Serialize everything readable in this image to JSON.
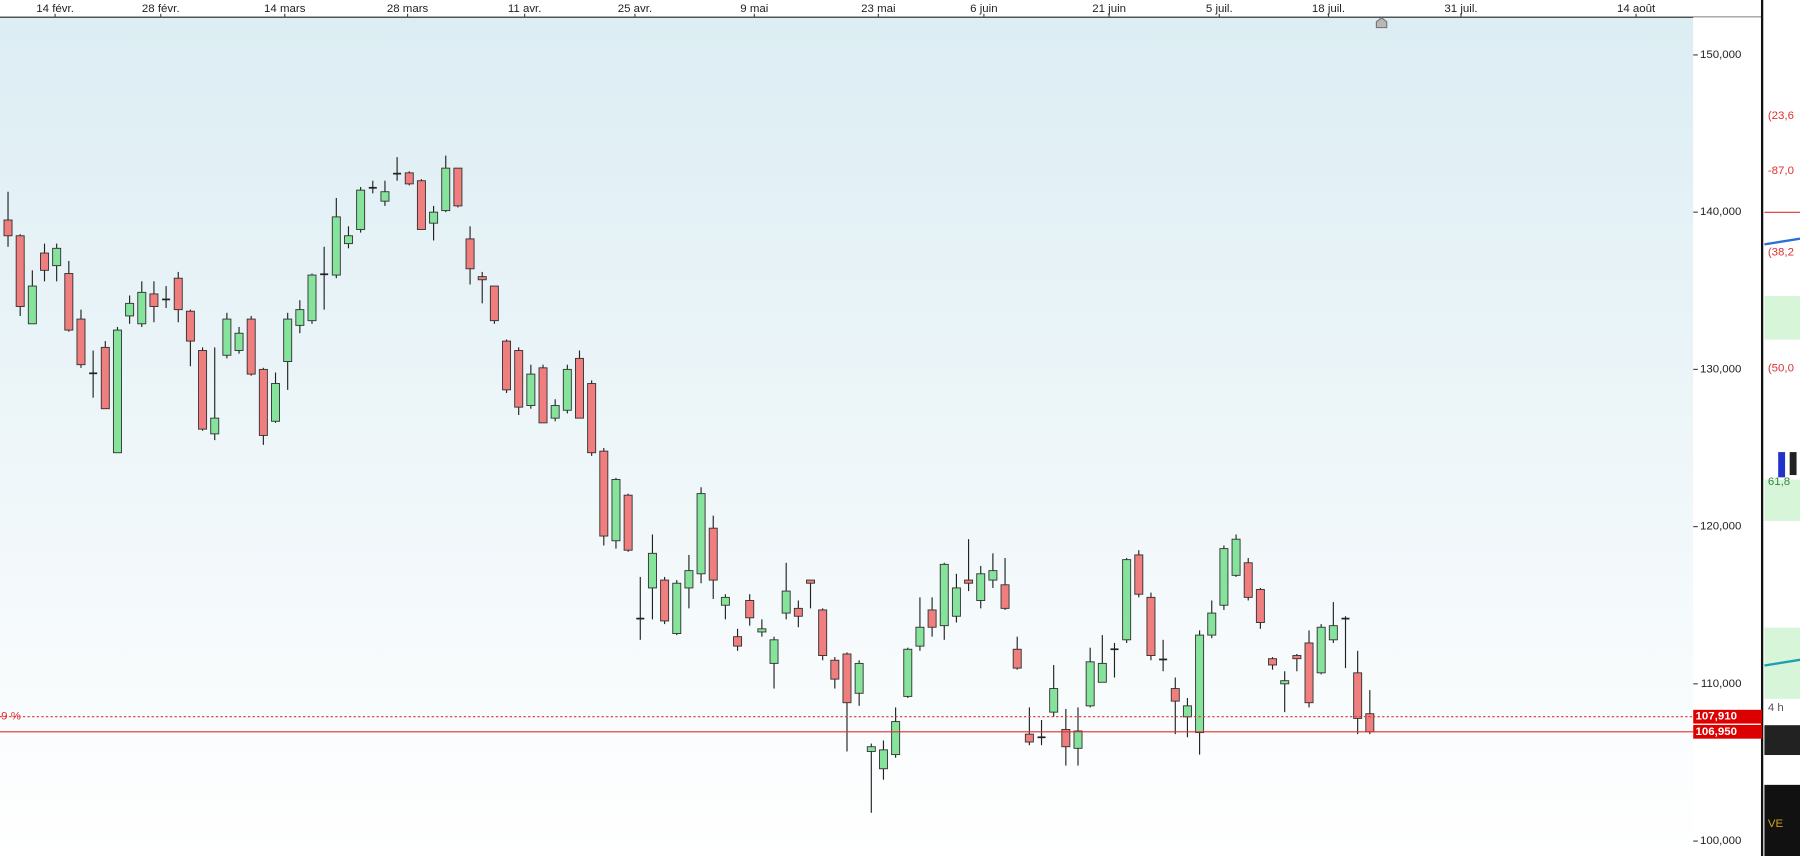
{
  "chart_data": {
    "type": "candlestick",
    "up_color": "#86e39c",
    "down_color": "#f07e7e",
    "open": [
      139500,
      138500,
      132900,
      137400,
      136600,
      136100,
      133200,
      129800,
      131400,
      124700,
      133400,
      132900,
      134800,
      134500,
      135800,
      133700,
      131200,
      125900,
      130900,
      131200,
      133200,
      130000,
      126700,
      130500,
      132800,
      133100,
      136000,
      136000,
      138000,
      138900,
      141500,
      140700,
      142400,
      142500,
      142000,
      139300,
      140100,
      142800,
      138300,
      135900,
      135300,
      131800,
      131200,
      127700,
      130100,
      126900,
      127400,
      130700,
      129100,
      124800,
      119100,
      122000,
      114200,
      116100,
      116600,
      113200,
      116100,
      117000,
      119900,
      115000,
      113000,
      115300,
      113300,
      111300,
      114500,
      114800,
      116600,
      114700,
      111500,
      111900,
      109400,
      105700,
      104600,
      105500,
      109200,
      112400,
      114700,
      113700,
      114300,
      116600,
      115300,
      116600,
      116300,
      112200,
      106800,
      106600,
      108200,
      107100,
      105900,
      108600,
      110100,
      112200,
      112800,
      118200,
      115500,
      111600,
      109700,
      107900,
      106900,
      113100,
      115000,
      116900,
      117700,
      116000,
      111600,
      110000,
      111800,
      112600,
      110700,
      112800,
      114200,
      110700,
      108100
    ],
    "high": [
      141300,
      138600,
      136300,
      138000,
      138000,
      136900,
      133800,
      131200,
      131800,
      132700,
      134700,
      135600,
      135600,
      135300,
      136200,
      133800,
      131400,
      131400,
      133600,
      132700,
      133400,
      130100,
      129800,
      133600,
      134400,
      136100,
      137800,
      140900,
      139100,
      141600,
      142000,
      142000,
      143500,
      142600,
      142100,
      140400,
      143600,
      142800,
      139100,
      136200,
      135300,
      131900,
      131400,
      130300,
      130300,
      128100,
      130300,
      131200,
      129300,
      125000,
      123100,
      122100,
      116800,
      119500,
      116800,
      116600,
      118200,
      122500,
      120700,
      115700,
      113500,
      115700,
      114100,
      113000,
      117700,
      115300,
      116600,
      114800,
      111700,
      112000,
      111500,
      106200,
      106400,
      108500,
      112300,
      115500,
      115500,
      117700,
      117000,
      119200,
      117500,
      118300,
      118000,
      113000,
      108500,
      107700,
      111200,
      108400,
      108500,
      112300,
      113100,
      112600,
      118000,
      118500,
      115800,
      112800,
      110400,
      109100,
      113400,
      115300,
      118800,
      119500,
      118000,
      116100,
      111700,
      110800,
      111900,
      113400,
      113800,
      115200,
      114300,
      112100,
      109600
    ],
    "low": [
      137800,
      133400,
      132900,
      135600,
      135600,
      132400,
      130100,
      128200,
      127500,
      124700,
      132900,
      132700,
      133000,
      133900,
      133000,
      130200,
      126100,
      125500,
      130700,
      131000,
      129600,
      125200,
      126600,
      128700,
      132300,
      132900,
      133800,
      135800,
      137700,
      138700,
      141200,
      140400,
      142000,
      141700,
      138900,
      138200,
      140000,
      140300,
      135400,
      134200,
      132900,
      128500,
      127100,
      127500,
      126600,
      126700,
      127200,
      126900,
      124500,
      118800,
      118600,
      118400,
      112800,
      114100,
      113800,
      113100,
      114800,
      116400,
      115400,
      114100,
      112100,
      113700,
      113000,
      109700,
      114100,
      113600,
      114800,
      111500,
      109700,
      105700,
      108600,
      101800,
      103900,
      105300,
      109100,
      112100,
      113000,
      112800,
      113900,
      115900,
      114800,
      116100,
      114700,
      110900,
      106100,
      106100,
      107900,
      104800,
      104800,
      108500,
      110100,
      110400,
      112600,
      115500,
      111500,
      110800,
      106800,
      106600,
      105500,
      112900,
      114700,
      116800,
      115300,
      113500,
      110900,
      108200,
      110800,
      108500,
      110600,
      112600,
      111000,
      106800,
      106800
    ],
    "close": [
      138500,
      134000,
      135300,
      136300,
      137700,
      132500,
      130300,
      129700,
      127500,
      132500,
      134200,
      134900,
      134000,
      134400,
      133800,
      131800,
      126200,
      126900,
      133200,
      132300,
      129700,
      125800,
      129100,
      133200,
      133800,
      136000,
      136100,
      139700,
      138500,
      141400,
      141600,
      141300,
      142500,
      141800,
      138900,
      140000,
      142800,
      140400,
      136400,
      135700,
      133100,
      128700,
      127600,
      129700,
      126600,
      127700,
      130000,
      126900,
      124700,
      119400,
      123000,
      118500,
      114100,
      118300,
      114000,
      116400,
      117200,
      122100,
      116600,
      115500,
      112400,
      114200,
      113500,
      112800,
      115900,
      114300,
      116400,
      111800,
      110300,
      108800,
      111300,
      106000,
      105800,
      107600,
      112200,
      113600,
      113600,
      117600,
      116100,
      116400,
      117000,
      117200,
      114800,
      111000,
      106300,
      106600,
      109700,
      106000,
      107000,
      111400,
      111300,
      112200,
      117900,
      115700,
      111800,
      111500,
      108900,
      108600,
      113100,
      114500,
      118600,
      119200,
      115500,
      113900,
      111200,
      110200,
      111600,
      108800,
      113600,
      113700,
      114100,
      107800,
      106950
    ],
    "xlim": [
      -0.66,
      138.6
    ],
    "xticks": [
      {
        "value": 3.87,
        "label": "14 févr."
      },
      {
        "value": 12.56,
        "label": "28 févr."
      },
      {
        "value": 22.76,
        "label": "14 mars"
      },
      {
        "value": 32.86,
        "label": "28 mars"
      },
      {
        "value": 42.49,
        "label": "11 avr."
      },
      {
        "value": 51.56,
        "label": "25 avr."
      },
      {
        "value": 61.38,
        "label": "9 mai"
      },
      {
        "value": 71.58,
        "label": "23 mai"
      },
      {
        "value": 80.26,
        "label": "6 juin"
      },
      {
        "value": 90.56,
        "label": "21 juin"
      },
      {
        "value": 99.62,
        "label": "5 juil."
      },
      {
        "value": 108.6,
        "label": "18 juil."
      },
      {
        "value": 119.5,
        "label": "31 juil."
      },
      {
        "value": 133.9,
        "label": "14 août"
      }
    ],
    "ylim": [
      99050,
      152400
    ],
    "yticks": [
      {
        "value": 100000,
        "label": "100,000"
      },
      {
        "value": 110000,
        "label": "110,000"
      },
      {
        "value": 120000,
        "label": "120,000"
      },
      {
        "value": 130000,
        "label": "130,000"
      },
      {
        "value": 140000,
        "label": "140,000"
      },
      {
        "value": 150000,
        "label": "150,000"
      }
    ],
    "price_lines": [
      {
        "value": 107910,
        "label": "107,910",
        "style": "dotted",
        "color": "#e03030",
        "note": "9 %"
      },
      {
        "value": 106950,
        "label": "106,950",
        "style": "solid",
        "color": "#e03030"
      }
    ]
  },
  "side_panel": {
    "labels": [
      "(23,6",
      "-87,0",
      "(38,2",
      "(50,0",
      "61,8",
      "4 h",
      "VE"
    ]
  }
}
